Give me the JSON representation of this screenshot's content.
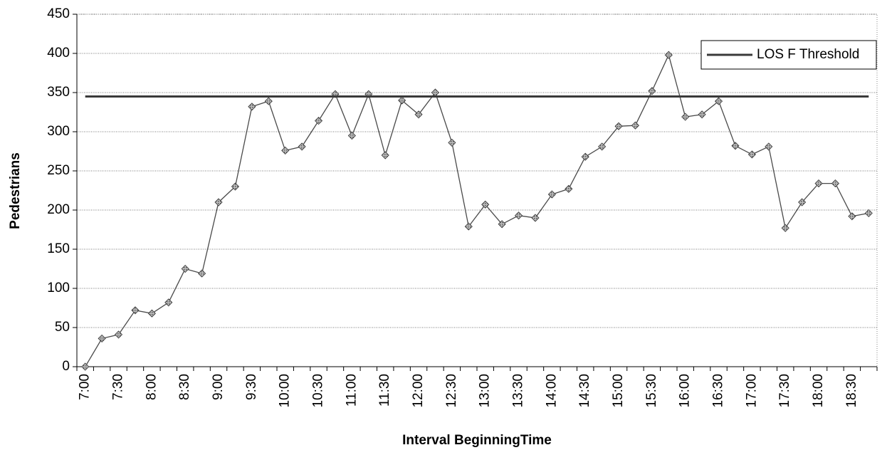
{
  "chart_data": {
    "type": "line",
    "x_label": "Interval BeginningTime",
    "y_label": "Pedestrians",
    "categories": [
      "7:00",
      null,
      "7:30",
      null,
      "8:00",
      null,
      "8:30",
      null,
      "9:00",
      null,
      "9:30",
      null,
      "10:00",
      null,
      "10:30",
      null,
      "11:00",
      null,
      "11:30",
      null,
      "12:00",
      null,
      "12:30",
      null,
      "13:00",
      null,
      "13:30",
      null,
      "14:00",
      null,
      "14:30",
      null,
      "15:00",
      null,
      "15:30",
      null,
      "16:00",
      null,
      "16:30",
      null,
      "17:00",
      null,
      "17:30",
      null,
      "18:00",
      null,
      "18:30",
      null
    ],
    "series": [
      {
        "color": "#4a4a4a",
        "marker": "diamond",
        "values": [
          0,
          36,
          41,
          72,
          68,
          82,
          125,
          119,
          210,
          230,
          332,
          339,
          276,
          281,
          314,
          348,
          295,
          348,
          270,
          340,
          322,
          350,
          286,
          179,
          207,
          182,
          193,
          190,
          220,
          227,
          268,
          281,
          307,
          308,
          352,
          398,
          319,
          322,
          339,
          282,
          271,
          281,
          177,
          210,
          234,
          234,
          192,
          196
        ]
      },
      {
        "name": "LOS F Threshold",
        "color": "#3a3a3a",
        "values": [
          345,
          345,
          345,
          345,
          345,
          345,
          345,
          345,
          345,
          345,
          345,
          345,
          345,
          345,
          345,
          345,
          345,
          345,
          345,
          345,
          345,
          345,
          345,
          345,
          345,
          345,
          345,
          345,
          345,
          345,
          345,
          345,
          345,
          345,
          345,
          345,
          345,
          345,
          345,
          345,
          345,
          345,
          345,
          345,
          345,
          345,
          345,
          345
        ]
      }
    ],
    "ylim": [
      0,
      450
    ],
    "yticks": [
      0,
      50,
      100,
      150,
      200,
      250,
      300,
      350,
      400,
      450
    ],
    "grid": true,
    "legend": "upper right"
  }
}
